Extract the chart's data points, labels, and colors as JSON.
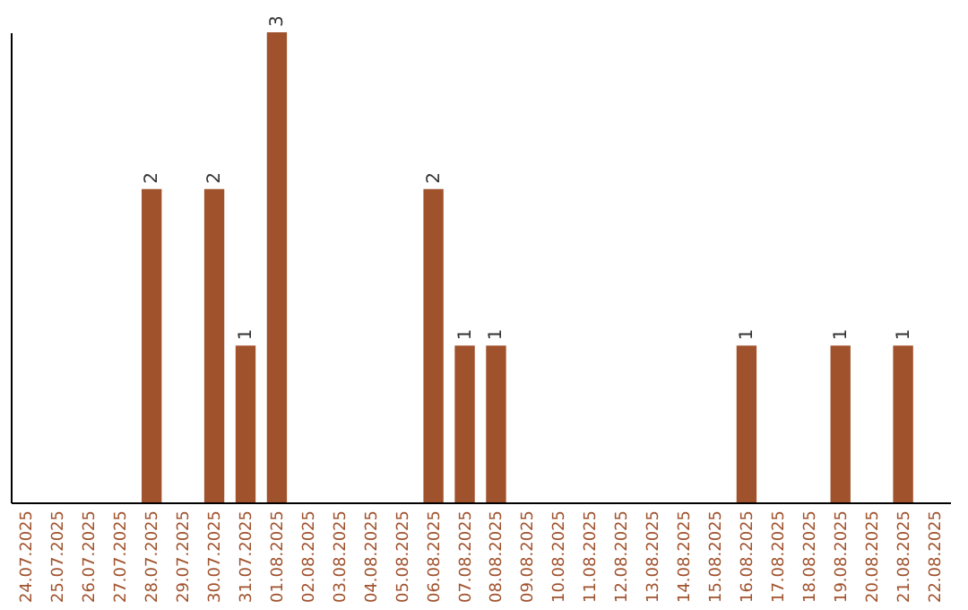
{
  "chart_data": {
    "type": "bar",
    "relative": false,
    "categories": [
      "24.07.2025",
      "25.07.2025",
      "26.07.2025",
      "27.07.2025",
      "28.07.2025",
      "29.07.2025",
      "30.07.2025",
      "31.07.2025",
      "01.08.2025",
      "02.08.2025",
      "03.08.2025",
      "04.08.2025",
      "05.08.2025",
      "06.08.2025",
      "07.08.2025",
      "08.08.2025",
      "09.08.2025",
      "10.08.2025",
      "11.08.2025",
      "12.08.2025",
      "13.08.2025",
      "14.08.2025",
      "15.08.2025",
      "16.08.2025",
      "17.08.2025",
      "18.08.2025",
      "19.08.2025",
      "20.08.2025",
      "21.08.2025",
      "22.08.2025"
    ],
    "values": [
      0,
      0,
      0,
      0,
      2,
      0,
      2,
      1,
      3,
      0,
      0,
      0,
      0,
      2,
      1,
      1,
      0,
      0,
      0,
      0,
      0,
      0,
      0,
      1,
      0,
      0,
      1,
      0,
      1,
      0
    ],
    "value_labels": [
      null,
      null,
      null,
      null,
      "2",
      null,
      "2",
      "1",
      "3",
      null,
      null,
      null,
      null,
      "2",
      "1",
      "1",
      null,
      null,
      null,
      null,
      null,
      null,
      null,
      "1",
      null,
      null,
      "1",
      null,
      "1",
      null
    ],
    "color": "#a0522d",
    "grid": false
  }
}
